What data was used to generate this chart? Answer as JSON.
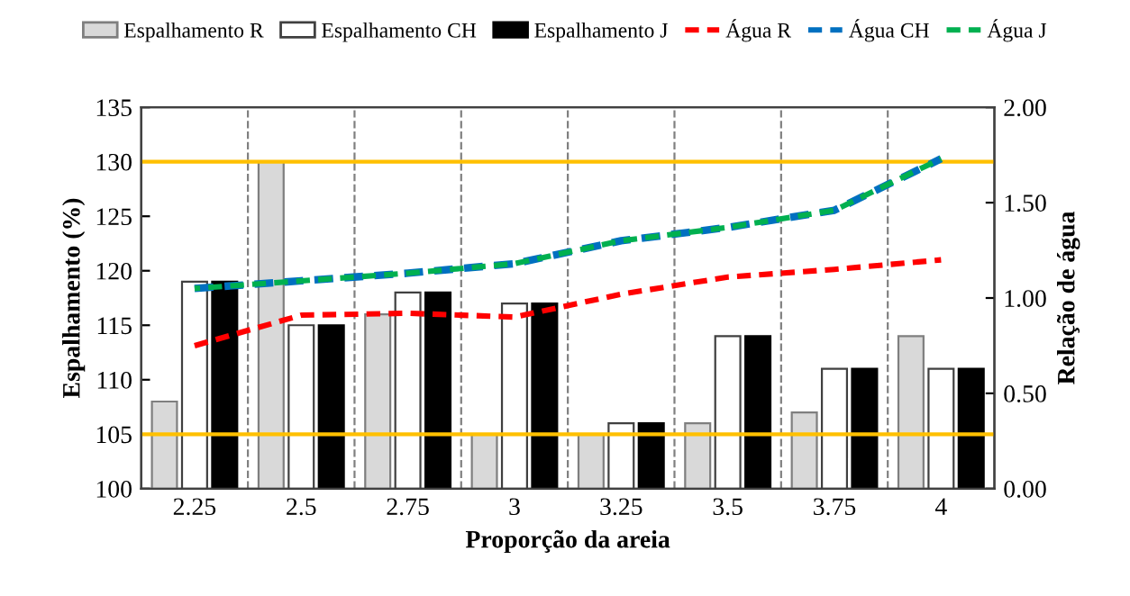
{
  "chart_data": {
    "type": "bar",
    "xlabel": "Proporção da areia",
    "ylabel": "Espalhamento (%)",
    "y2label": "Relação de água",
    "categories": [
      "2.25",
      "2.5",
      "2.75",
      "3",
      "3.25",
      "3.5",
      "3.75",
      "4"
    ],
    "series": [
      {
        "name": "Espalhamento R",
        "color": "#d9d9d9",
        "values": [
          108,
          130,
          116,
          105,
          105,
          106,
          107,
          114
        ]
      },
      {
        "name": "Espalhamento CH",
        "color": "#ffffff",
        "values": [
          119,
          115,
          118,
          117,
          106,
          114,
          111,
          111
        ]
      },
      {
        "name": "Espalhamento J",
        "color": "#000000",
        "values": [
          119,
          115,
          118,
          117,
          106,
          114,
          111,
          111
        ]
      },
      {
        "name": "Água R",
        "type": "line",
        "axis": "y2",
        "color": "#ff0000",
        "values": [
          0.75,
          0.91,
          0.92,
          0.9,
          1.02,
          1.11,
          1.15,
          1.2
        ]
      },
      {
        "name": "Água CH",
        "type": "line",
        "axis": "y2",
        "color": "#0070c0",
        "values": [
          1.05,
          1.09,
          1.13,
          1.18,
          1.3,
          1.37,
          1.46,
          1.73
        ]
      },
      {
        "name": "Água J",
        "type": "line",
        "axis": "y2",
        "color": "#00b050",
        "values": [
          1.05,
          1.09,
          1.13,
          1.18,
          1.3,
          1.37,
          1.46,
          1.73
        ]
      }
    ],
    "ylim": [
      100,
      135
    ],
    "yticks": [
      100,
      105,
      110,
      115,
      120,
      125,
      130,
      135
    ],
    "y2lim": [
      0,
      2
    ],
    "y2ticks": [
      {
        "value": 0,
        "label": "0.00"
      },
      {
        "value": 0.5,
        "label": "0.50"
      },
      {
        "value": 1,
        "label": "1.00"
      },
      {
        "value": 1.5,
        "label": "1.50"
      },
      {
        "value": 2,
        "label": "2.00"
      }
    ],
    "ref_lines": [
      {
        "axis": "y",
        "value": 130,
        "color": "#ffc000"
      },
      {
        "axis": "y",
        "value": 105,
        "color": "#ffc000"
      }
    ],
    "line_style": "dashed",
    "marker": "none",
    "grid": "x",
    "legend": "top"
  }
}
